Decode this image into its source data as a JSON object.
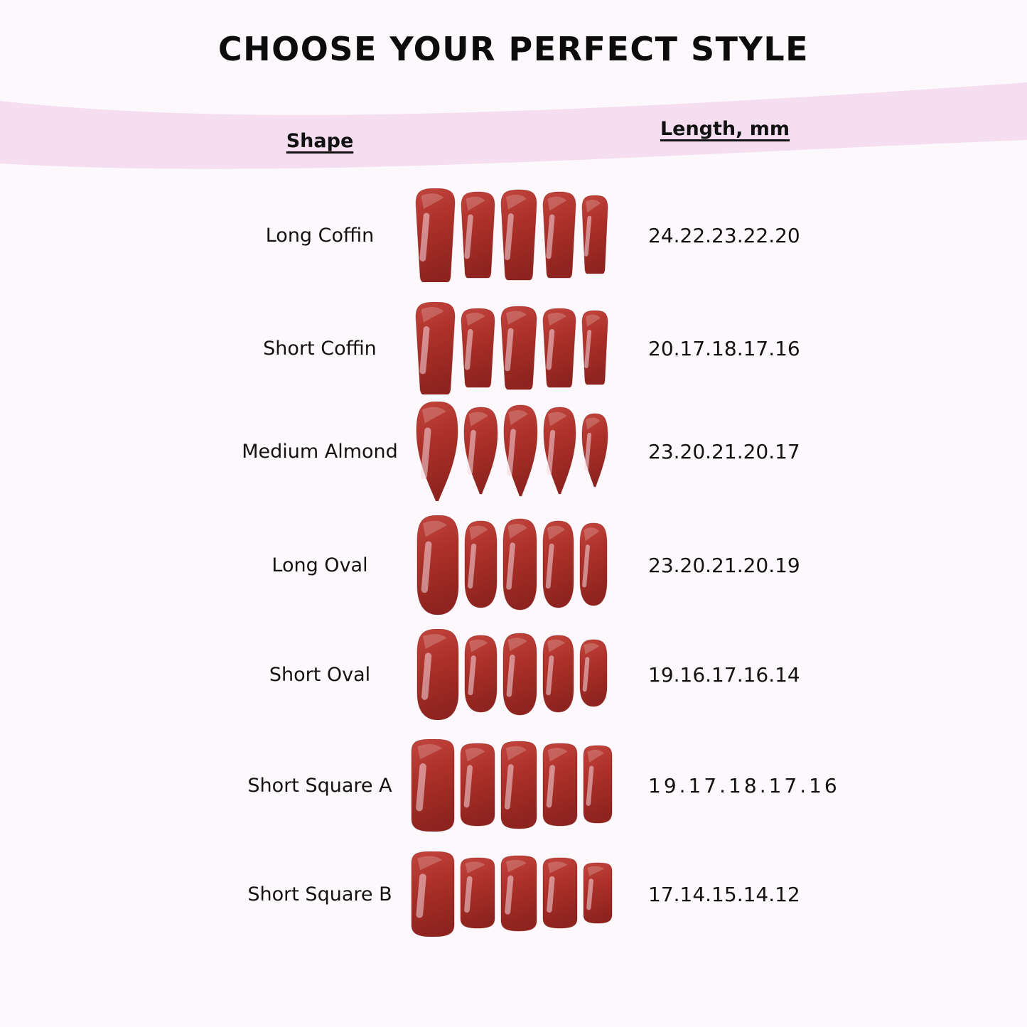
{
  "page": {
    "title": "CHOOSE YOUR PERFECT STYLE",
    "background_color": "#fdf8fb",
    "band_color": "#f4def0",
    "nail_color": "#ac3029",
    "text_color": "#121212"
  },
  "chart_data": {
    "type": "table",
    "title": "CHOOSE YOUR PERFECT STYLE",
    "columns": [
      "Shape",
      "Length, mm"
    ],
    "rows": [
      {
        "shape": "Long Coffin",
        "nail_type": "coffin",
        "lengths_display": "24.22.23.22.20",
        "lengths_mm": [
          24,
          22,
          23,
          22,
          20
        ],
        "value_spaced": false
      },
      {
        "shape": "Short Coffin",
        "nail_type": "coffin",
        "lengths_display": "20.17.18.17.16",
        "lengths_mm": [
          20,
          17,
          18,
          17,
          16
        ],
        "value_spaced": false
      },
      {
        "shape": "Medium Almond",
        "nail_type": "almond",
        "lengths_display": "23.20.21.20.17",
        "lengths_mm": [
          23,
          20,
          21,
          20,
          17
        ],
        "value_spaced": false
      },
      {
        "shape": "Long Oval",
        "nail_type": "oval",
        "lengths_display": "23.20.21.20.19",
        "lengths_mm": [
          23,
          20,
          21,
          20,
          19
        ],
        "value_spaced": false
      },
      {
        "shape": "Short Oval",
        "nail_type": "oval",
        "lengths_display": "19.16.17.16.14",
        "lengths_mm": [
          19,
          16,
          17,
          16,
          14
        ],
        "value_spaced": false
      },
      {
        "shape": "Short Square A",
        "nail_type": "square",
        "lengths_display": "19.17.18.17.16",
        "lengths_mm": [
          19,
          17,
          18,
          17,
          16
        ],
        "value_spaced": true
      },
      {
        "shape": "Short Square B",
        "nail_type": "square",
        "lengths_display": "17.14.15.14.12",
        "lengths_mm": [
          17,
          14,
          15,
          14,
          12
        ],
        "value_spaced": false
      }
    ]
  }
}
